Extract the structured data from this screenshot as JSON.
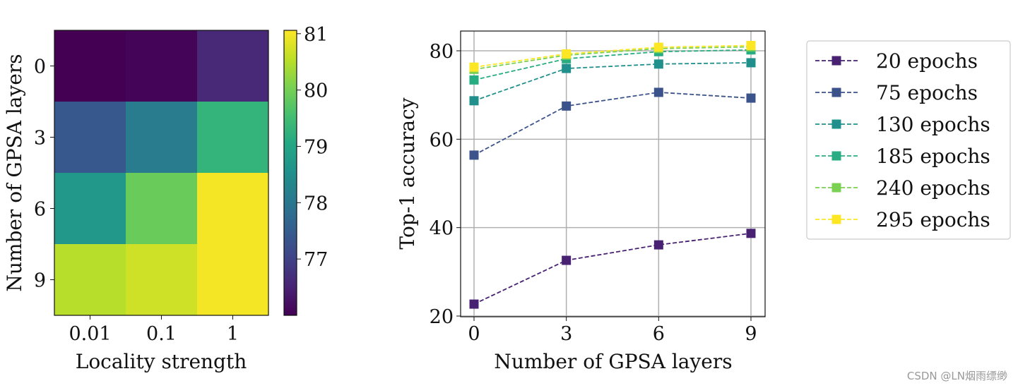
{
  "chart_data": [
    {
      "type": "heatmap",
      "xlabel": "Locality strength",
      "ylabel": "Number of GPSA layers",
      "x_categories": [
        "0.01",
        "0.1",
        "1"
      ],
      "y_categories": [
        "0",
        "3",
        "6",
        "9"
      ],
      "values": [
        [
          76.0,
          76.05,
          76.6
        ],
        [
          77.4,
          78.1,
          79.3
        ],
        [
          78.7,
          79.9,
          81.0
        ],
        [
          80.5,
          80.7,
          81.0
        ]
      ],
      "colormap": "viridis",
      "colorbar": {
        "range": [
          76.0,
          81.06
        ],
        "ticks": [
          "77",
          "78",
          "79",
          "80",
          "81"
        ]
      }
    },
    {
      "type": "line",
      "xlabel": "Number of GPSA layers",
      "ylabel": "Top-1 accuracy",
      "x": [
        0,
        3,
        6,
        9
      ],
      "x_ticks": [
        "0",
        "3",
        "6",
        "9"
      ],
      "y_ticks": [
        "20",
        "40",
        "60",
        "80"
      ],
      "xlim": [
        -0.5,
        9.5
      ],
      "ylim": [
        20,
        84
      ],
      "grid": true,
      "legend_placement": "outside-right",
      "marker": "square",
      "line_style": "dashed",
      "series": [
        {
          "name": "20 epochs",
          "color": "#482173",
          "values": [
            22.7,
            32.6,
            36.1,
            38.7
          ]
        },
        {
          "name": "75 epochs",
          "color": "#3b528b",
          "values": [
            56.4,
            67.5,
            70.6,
            69.3
          ]
        },
        {
          "name": "130 epochs",
          "color": "#21908d",
          "values": [
            68.7,
            76.0,
            77.0,
            77.3
          ]
        },
        {
          "name": "185 epochs",
          "color": "#27ad81",
          "values": [
            73.4,
            78.2,
            79.8,
            80.2
          ]
        },
        {
          "name": "240 epochs",
          "color": "#7ad151",
          "values": [
            75.8,
            79.0,
            80.5,
            80.9
          ]
        },
        {
          "name": "295 epochs",
          "color": "#fde725",
          "values": [
            76.3,
            79.3,
            80.8,
            81.2
          ]
        }
      ]
    }
  ],
  "watermark": "CSDN @LN烟雨缥缈"
}
